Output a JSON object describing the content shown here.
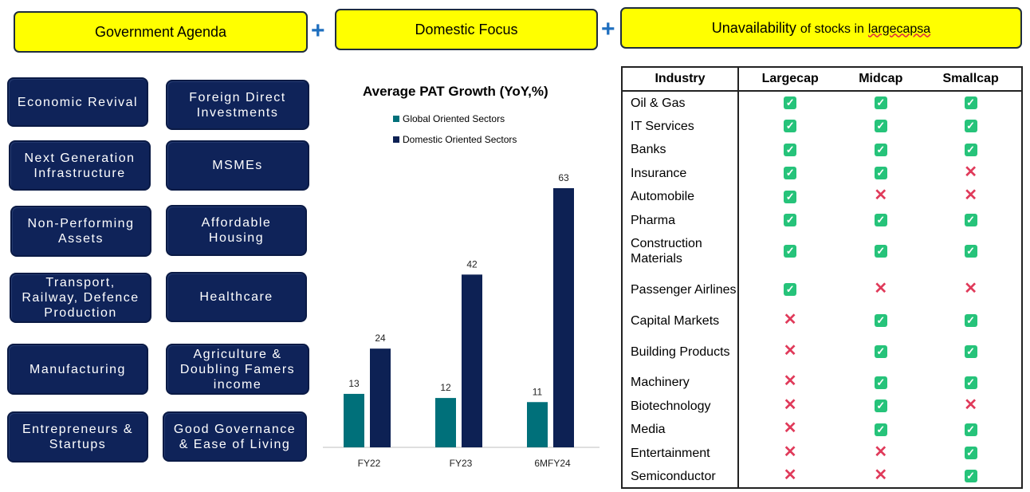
{
  "header": {
    "box1": "Government Agenda",
    "box2": "Domestic Focus",
    "box3_a": "Unavailability",
    "box3_b": "of stocks in",
    "box3_c": "largecapsa",
    "plus": "+"
  },
  "agenda": [
    "Economic Revival",
    "Foreign Direct Investments",
    "Next Generation Infrastructure",
    "MSMEs",
    "Non-Performing Assets",
    "Affordable Housing",
    "Transport, Railway, Defence Production",
    "Healthcare",
    "Manufacturing",
    "Agriculture & Doubling Famers income",
    "Entrepreneurs & Startups",
    "Good Governance & Ease of Living"
  ],
  "chart_data": {
    "type": "bar",
    "title": "Average PAT Growth (YoY,%)",
    "categories": [
      "FY22",
      "FY23",
      "6MFY24"
    ],
    "series": [
      {
        "name": "Global Oriented Sectors",
        "values": [
          13,
          12,
          11
        ],
        "color": "#00707a"
      },
      {
        "name": "Domestic Oriented Sectors",
        "values": [
          24,
          42,
          63
        ],
        "color": "#0d2154"
      }
    ],
    "ylim": [
      0,
      70
    ],
    "grid": false,
    "legend_position": "top-left"
  },
  "table": {
    "headers": [
      "Industry",
      "Largecap",
      "Midcap",
      "Smallcap"
    ],
    "rows": [
      {
        "industry": "Oil & Gas",
        "values": [
          "yes",
          "yes",
          "yes"
        ]
      },
      {
        "industry": "IT Services",
        "values": [
          "yes",
          "yes",
          "yes"
        ]
      },
      {
        "industry": "Banks",
        "values": [
          "yes",
          "yes",
          "yes"
        ]
      },
      {
        "industry": "Insurance",
        "values": [
          "yes",
          "yes",
          "no"
        ]
      },
      {
        "industry": "Automobile",
        "values": [
          "yes",
          "no",
          "no"
        ]
      },
      {
        "industry": "Pharma",
        "values": [
          "yes",
          "yes",
          "yes"
        ]
      },
      {
        "industry": "Construction Materials",
        "values": [
          "yes",
          "yes",
          "yes"
        ]
      },
      {
        "industry": "Passenger Airlines",
        "values": [
          "yes",
          "no",
          "no"
        ]
      },
      {
        "industry": "Capital Markets",
        "values": [
          "no",
          "yes",
          "yes"
        ]
      },
      {
        "industry": "Building Products",
        "values": [
          "no",
          "yes",
          "yes"
        ]
      },
      {
        "industry": "Machinery",
        "values": [
          "no",
          "yes",
          "yes"
        ]
      },
      {
        "industry": "Biotechnology",
        "values": [
          "no",
          "yes",
          "no"
        ]
      },
      {
        "industry": "Media",
        "values": [
          "no",
          "yes",
          "yes"
        ]
      },
      {
        "industry": "Entertainment",
        "values": [
          "no",
          "no",
          "yes"
        ]
      },
      {
        "industry": "Semiconductor",
        "values": [
          "no",
          "no",
          "yes"
        ]
      }
    ],
    "icons": {
      "yes": "check-icon",
      "no": "cross-icon"
    },
    "yes_color": "#26c37a",
    "no_color": "#e03a5a"
  }
}
